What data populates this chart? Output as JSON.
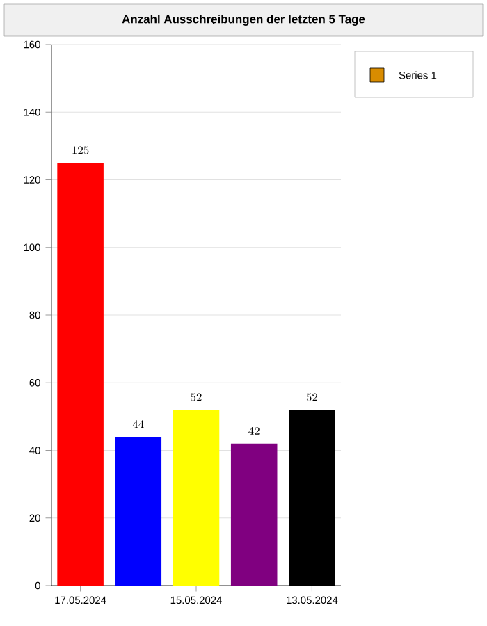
{
  "chart_data": {
    "type": "bar",
    "title": "Anzahl Ausschreibungen der letzten 5 Tage",
    "categories": [
      "17.05.2024",
      null,
      "15.05.2024",
      null,
      "13.05.2024"
    ],
    "series": [
      {
        "name": "Series 1",
        "color": "#d98c00",
        "colors": [
          "#ff0000",
          "#0000ff",
          "#ffff00",
          "#800080",
          "#000000"
        ],
        "values": [
          125,
          44,
          52,
          42,
          52
        ]
      }
    ],
    "ylim": [
      0,
      160
    ],
    "yticks": [
      0,
      20,
      40,
      60,
      80,
      100,
      120,
      140,
      160
    ],
    "grid": "y",
    "legend": "top right",
    "data_labels": true
  }
}
